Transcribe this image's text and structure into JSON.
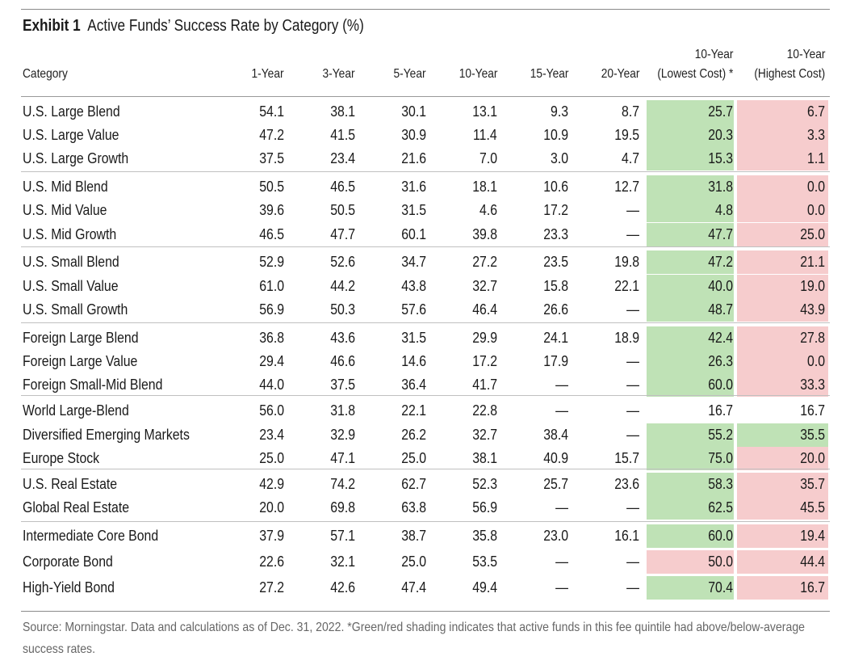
{
  "exhibit": {
    "label": "Exhibit 1",
    "title": "Active Funds’ Success Rate by Category (%)",
    "footnote": "Source: Morningstar. Data and calculations as of Dec. 31, 2022. *Green/red shading indicates that active funds in this fee quintile had above/below-average success rates."
  },
  "colors": {
    "green": "#bfe2b6",
    "red": "#f6cccd"
  },
  "chart_data": {
    "type": "table",
    "title": "Active Funds’ Success Rate by Category (%)",
    "columns": [
      {
        "line1": "",
        "line2": "Category"
      },
      {
        "line1": "",
        "line2": "1-Year"
      },
      {
        "line1": "",
        "line2": "3-Year"
      },
      {
        "line1": "",
        "line2": "5-Year"
      },
      {
        "line1": "",
        "line2": "10-Year"
      },
      {
        "line1": "",
        "line2": "15-Year"
      },
      {
        "line1": "",
        "line2": "20-Year"
      },
      {
        "line1": "10-Year",
        "line2": "(Lowest Cost) *"
      },
      {
        "line1": "10-Year",
        "line2": "(Highest Cost)"
      }
    ],
    "rows": [
      {
        "category": "U.S. Large Blend",
        "values": [
          "54.1",
          "38.1",
          "30.1",
          "13.1",
          "9.3",
          "8.7",
          "25.7",
          "6.7"
        ],
        "shading": [
          "green",
          "red"
        ]
      },
      {
        "category": "U.S. Large Value",
        "values": [
          "47.2",
          "41.5",
          "30.9",
          "11.4",
          "10.9",
          "19.5",
          "20.3",
          "3.3"
        ],
        "shading": [
          "green",
          "red"
        ]
      },
      {
        "category": "U.S. Large Growth",
        "values": [
          "37.5",
          "23.4",
          "21.6",
          "7.0",
          "3.0",
          "4.7",
          "15.3",
          "1.1"
        ],
        "shading": [
          "green",
          "red"
        ]
      },
      {
        "category": "U.S. Mid Blend",
        "values": [
          "50.5",
          "46.5",
          "31.6",
          "18.1",
          "10.6",
          "12.7",
          "31.8",
          "0.0"
        ],
        "shading": [
          "green",
          "red"
        ]
      },
      {
        "category": "U.S. Mid Value",
        "values": [
          "39.6",
          "50.5",
          "31.5",
          "4.6",
          "17.2",
          "—",
          "4.8",
          "0.0"
        ],
        "shading": [
          "green",
          "red"
        ]
      },
      {
        "category": "U.S. Mid Growth",
        "values": [
          "46.5",
          "47.7",
          "60.1",
          "39.8",
          "23.3",
          "—",
          "47.7",
          "25.0"
        ],
        "shading": [
          "green",
          "red"
        ]
      },
      {
        "category": "U.S. Small Blend",
        "values": [
          "52.9",
          "52.6",
          "34.7",
          "27.2",
          "23.5",
          "19.8",
          "47.2",
          "21.1"
        ],
        "shading": [
          "green",
          "red"
        ]
      },
      {
        "category": "U.S. Small Value",
        "values": [
          "61.0",
          "44.2",
          "43.8",
          "32.7",
          "15.8",
          "22.1",
          "40.0",
          "19.0"
        ],
        "shading": [
          "green",
          "red"
        ]
      },
      {
        "category": "U.S. Small Growth",
        "values": [
          "56.9",
          "50.3",
          "57.6",
          "46.4",
          "26.6",
          "—",
          "48.7",
          "43.9"
        ],
        "shading": [
          "green",
          "red"
        ]
      },
      {
        "category": "Foreign Large Blend",
        "values": [
          "36.8",
          "43.6",
          "31.5",
          "29.9",
          "24.1",
          "18.9",
          "42.4",
          "27.8"
        ],
        "shading": [
          "green",
          "red"
        ]
      },
      {
        "category": "Foreign Large Value",
        "values": [
          "29.4",
          "46.6",
          "14.6",
          "17.2",
          "17.9",
          "—",
          "26.3",
          "0.0"
        ],
        "shading": [
          "green",
          "red"
        ]
      },
      {
        "category": "Foreign Small-Mid Blend",
        "values": [
          "44.0",
          "37.5",
          "36.4",
          "41.7",
          "—",
          "—",
          "60.0",
          "33.3"
        ],
        "shading": [
          "green",
          "red"
        ]
      },
      {
        "category": "World Large-Blend",
        "values": [
          "56.0",
          "31.8",
          "22.1",
          "22.8",
          "—",
          "—",
          "16.7",
          "16.7"
        ],
        "shading": [
          "none",
          "none"
        ]
      },
      {
        "category": "Diversified Emerging Markets",
        "values": [
          "23.4",
          "32.9",
          "26.2",
          "32.7",
          "38.4",
          "—",
          "55.2",
          "35.5"
        ],
        "shading": [
          "green",
          "green"
        ]
      },
      {
        "category": "Europe Stock",
        "values": [
          "25.0",
          "47.1",
          "25.0",
          "38.1",
          "40.9",
          "15.7",
          "75.0",
          "20.0"
        ],
        "shading": [
          "green",
          "red"
        ]
      },
      {
        "category": "U.S. Real Estate",
        "values": [
          "42.9",
          "74.2",
          "62.7",
          "52.3",
          "25.7",
          "23.6",
          "58.3",
          "35.7"
        ],
        "shading": [
          "green",
          "red"
        ]
      },
      {
        "category": "Global Real Estate",
        "values": [
          "20.0",
          "69.8",
          "63.8",
          "56.9",
          "—",
          "—",
          "62.5",
          "45.5"
        ],
        "shading": [
          "green",
          "red"
        ]
      },
      {
        "category": "Intermediate Core Bond",
        "values": [
          "37.9",
          "57.1",
          "38.7",
          "35.8",
          "23.0",
          "16.1",
          "60.0",
          "19.4"
        ],
        "shading": [
          "green",
          "red"
        ]
      },
      {
        "category": "Corporate Bond",
        "values": [
          "22.6",
          "32.1",
          "25.0",
          "53.5",
          "—",
          "—",
          "50.0",
          "44.4"
        ],
        "shading": [
          "red",
          "red"
        ]
      },
      {
        "category": "High-Yield Bond",
        "values": [
          "27.2",
          "42.6",
          "47.4",
          "49.4",
          "—",
          "—",
          "70.4",
          "16.7"
        ],
        "shading": [
          "green",
          "red"
        ]
      }
    ]
  }
}
